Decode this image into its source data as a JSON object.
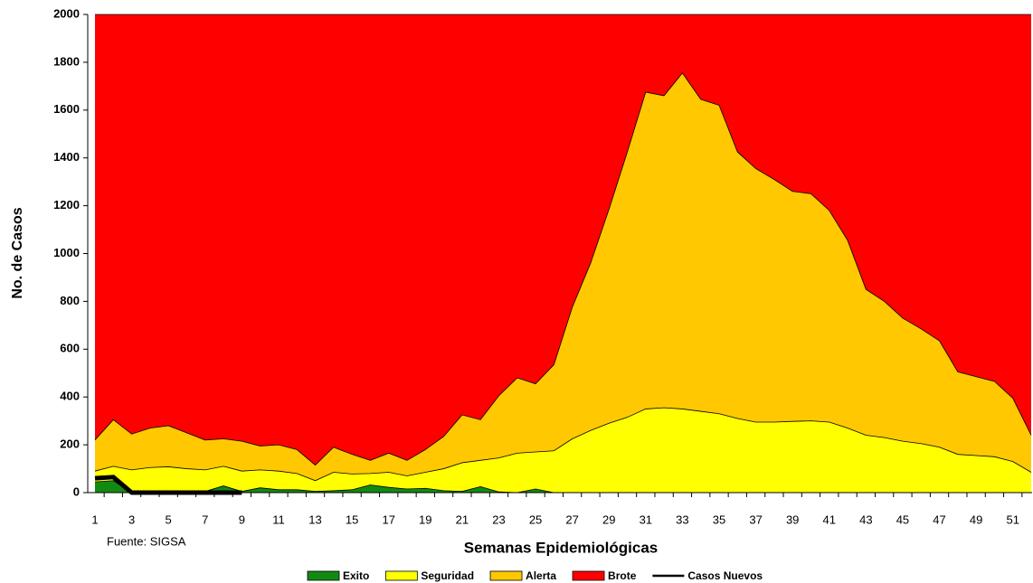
{
  "chart_data": {
    "type": "area",
    "y_label": "No. de Casos",
    "x_label": "Semanas Epidemiológicas",
    "annotation": "Fuente: SIGSA",
    "categories": [
      "1",
      null,
      "3",
      null,
      "5",
      null,
      "7",
      null,
      "9",
      null,
      "11",
      null,
      "13",
      null,
      "15",
      null,
      "17",
      null,
      "19",
      null,
      "21",
      null,
      "23",
      null,
      "25",
      null,
      "27",
      null,
      "29",
      null,
      "31",
      null,
      "33",
      null,
      "35",
      null,
      "37",
      null,
      "39",
      null,
      "41",
      null,
      "43",
      null,
      "45",
      null,
      "47",
      null,
      "49",
      null,
      "51",
      null
    ],
    "ylim": [
      0,
      2000
    ],
    "yticks": [
      0,
      200,
      400,
      600,
      800,
      1000,
      1200,
      1400,
      1600,
      1800,
      2000
    ],
    "series": [
      {
        "name": "Exito",
        "color": "#128a12",
        "kind": "area",
        "values": [
          45,
          50,
          0,
          0,
          0,
          0,
          5,
          28,
          5,
          20,
          12,
          12,
          5,
          8,
          12,
          32,
          22,
          15,
          18,
          8,
          5,
          25,
          3,
          0,
          15,
          0,
          0,
          0,
          0,
          0,
          0,
          0,
          0,
          0,
          0,
          0,
          0,
          0,
          0,
          0,
          0,
          0,
          0,
          0,
          0,
          0,
          0,
          0,
          0,
          0,
          0,
          0
        ]
      },
      {
        "name": "Seguridad",
        "color": "#ffff00",
        "kind": "area",
        "values": [
          90,
          110,
          95,
          105,
          108,
          100,
          95,
          110,
          90,
          95,
          90,
          80,
          50,
          85,
          78,
          80,
          85,
          70,
          85,
          100,
          125,
          135,
          145,
          165,
          170,
          175,
          225,
          260,
          290,
          315,
          350,
          355,
          350,
          340,
          330,
          310,
          295,
          295,
          298,
          300,
          295,
          270,
          240,
          230,
          215,
          205,
          190,
          160,
          155,
          150,
          130,
          85
        ]
      },
      {
        "name": "Alerta",
        "color": "#ffc800",
        "kind": "area",
        "values": [
          220,
          305,
          245,
          270,
          280,
          250,
          220,
          225,
          215,
          195,
          200,
          180,
          115,
          190,
          160,
          135,
          165,
          135,
          180,
          235,
          325,
          305,
          405,
          480,
          455,
          535,
          775,
          960,
          1185,
          1425,
          1675,
          1660,
          1755,
          1645,
          1620,
          1425,
          1355,
          1310,
          1260,
          1250,
          1180,
          1055,
          850,
          800,
          730,
          685,
          635,
          505,
          485,
          465,
          395,
          240
        ]
      },
      {
        "name": "Brote",
        "color": "#ff0000",
        "kind": "area",
        "values": [
          2000,
          2000,
          2000,
          2000,
          2000,
          2000,
          2000,
          2000,
          2000,
          2000,
          2000,
          2000,
          2000,
          2000,
          2000,
          2000,
          2000,
          2000,
          2000,
          2000,
          2000,
          2000,
          2000,
          2000,
          2000,
          2000,
          2000,
          2000,
          2000,
          2000,
          2000,
          2000,
          2000,
          2000,
          2000,
          2000,
          2000,
          2000,
          2000,
          2000,
          2000,
          2000,
          2000,
          2000,
          2000,
          2000,
          2000,
          2000,
          2000,
          2000,
          2000,
          2000
        ]
      },
      {
        "name": "Casos Nuevos",
        "color": "#000000",
        "kind": "line",
        "values": [
          60,
          65,
          0,
          0,
          0,
          0,
          0,
          0,
          0,
          null,
          null,
          null,
          null,
          null,
          null,
          null,
          null,
          null,
          null,
          null,
          null,
          null,
          null,
          null,
          null,
          null,
          null,
          null,
          null,
          null,
          null,
          null,
          null,
          null,
          null,
          null,
          null,
          null,
          null,
          null,
          null,
          null,
          null,
          null,
          null,
          null,
          null,
          null,
          null,
          null,
          null,
          null
        ]
      }
    ]
  }
}
